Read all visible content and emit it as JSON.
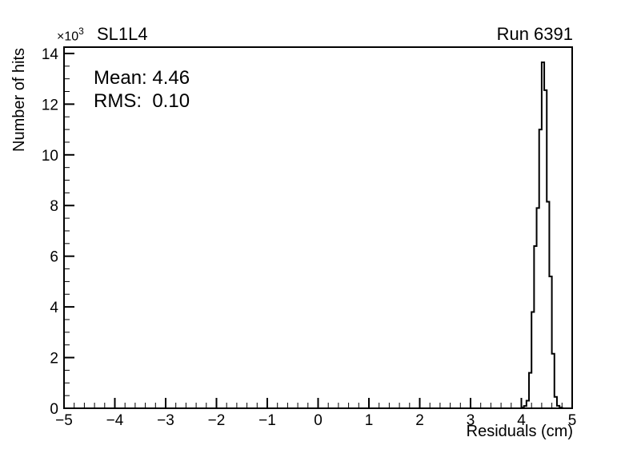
{
  "title": "SL1L4",
  "run_label": "Run 6391",
  "stats": {
    "mean_text": "Mean: 4.46",
    "rms_text": "RMS:  0.10"
  },
  "axes": {
    "x": {
      "title": "Residuals (cm)",
      "min": -5,
      "max": 5,
      "major_ticks": [
        -5,
        -4,
        -3,
        -2,
        -1,
        0,
        1,
        2,
        3,
        4,
        5
      ],
      "tick_labels": [
        "−5",
        "−4",
        "−3",
        "−2",
        "−1",
        "0",
        "1",
        "2",
        "3",
        "4",
        "5"
      ],
      "minor_step": 0.2
    },
    "y": {
      "title": "Number of hits",
      "min": 0,
      "max": 14250,
      "major_ticks": [
        0,
        2000,
        4000,
        6000,
        8000,
        10000,
        12000,
        14000
      ],
      "tick_labels": [
        "0",
        "2",
        "4",
        "6",
        "8",
        "10",
        "12",
        "14"
      ],
      "minor_step": 500,
      "exponent_base": "×10",
      "exponent_power": "3"
    }
  },
  "chart_data": {
    "type": "bar",
    "style": "step-outline-histogram",
    "title": "SL1L4",
    "xlabel": "Residuals (cm)",
    "ylabel": "Number of hits",
    "xlim": [
      -5,
      5
    ],
    "ylim": [
      0,
      14250
    ],
    "grid": false,
    "legend": "none",
    "annotations": [
      "Mean: 4.46",
      "RMS:  0.10",
      "Run 6391",
      "×10^3 axis multiplier"
    ],
    "bin_start": 4.0,
    "bin_width": 0.05,
    "bin_edges": [
      4.0,
      4.05,
      4.1,
      4.15,
      4.2,
      4.25,
      4.3,
      4.35,
      4.4,
      4.45,
      4.5,
      4.55,
      4.6,
      4.65,
      4.7,
      4.75,
      4.8
    ],
    "values": [
      30,
      90,
      300,
      1400,
      3800,
      6400,
      7900,
      11000,
      13650,
      12550,
      8150,
      5200,
      2150,
      450,
      100,
      30
    ],
    "peak_value": 13650,
    "peak_position": 4.45
  },
  "colors": {
    "line": "#000000",
    "frame": "#000000",
    "text": "#000000",
    "background": "#ffffff"
  }
}
